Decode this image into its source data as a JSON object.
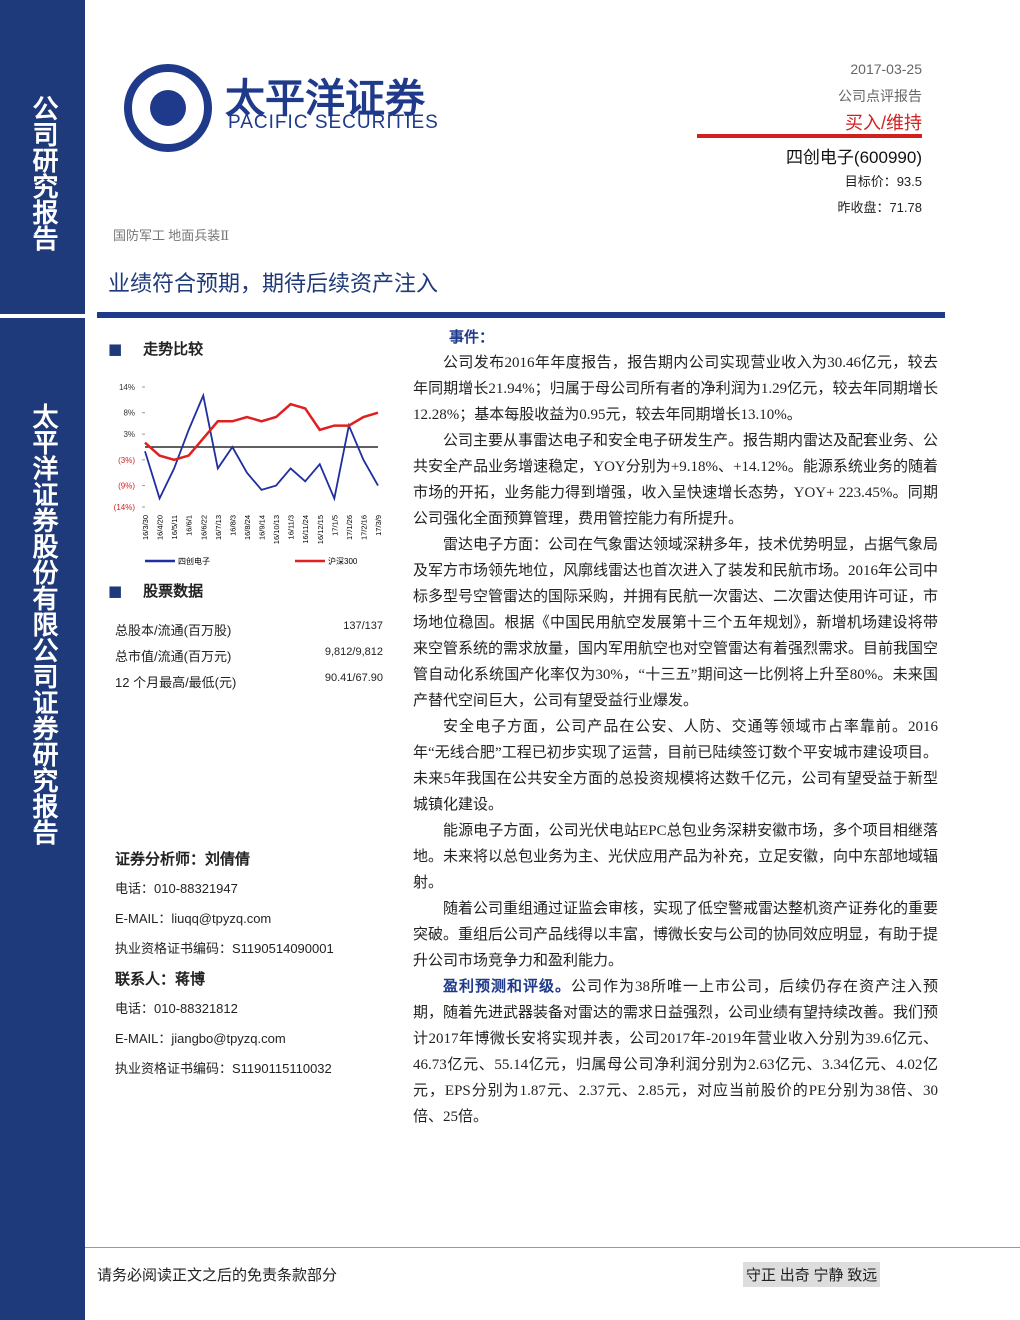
{
  "header": {
    "brand": "太平洋证券",
    "brand_en": "PACIFIC SECURITIES",
    "date": "2017-03-25",
    "report_type": "公司点评报告",
    "rating": "买入/维持",
    "company": "四创电子(600990)",
    "target_price": "目标价：93.5",
    "last_close": "昨收盘：71.78",
    "sector": "国防军工 地面兵装Ⅱ",
    "title": "业绩符合预期，期待后续资产注入"
  },
  "sidebar": {
    "top": "公司研究报告",
    "bottom": "太平洋证券股份有限公司证券研究报告"
  },
  "left": {
    "trend_heading": "走势比较",
    "stock_heading": "股票数据",
    "stock_rows": [
      [
        "总股本/流通(百万股)",
        "137/137"
      ],
      [
        "总市值/流通(百万元)",
        "9,812/9,812"
      ],
      [
        "12 个月最高/最低(元)",
        "90.41/67.90"
      ]
    ],
    "contacts": [
      "证券分析师：刘倩倩",
      "电话：010-88321947",
      "E-MAIL：liuqq@tpyzq.com",
      "执业资格证书编码：S1190514090001",
      "联系人：蒋博",
      "电话：010-88321812",
      "E-MAIL：jiangbo@tpyzq.com",
      "执业资格证书编码：S1190115110032"
    ]
  },
  "chart_data": {
    "type": "line",
    "categories": [
      "16/3/30",
      "16/4/20",
      "16/5/11",
      "16/6/1",
      "16/6/22",
      "16/7/13",
      "16/8/3",
      "16/8/24",
      "16/9/14",
      "16/10/13",
      "16/11/3",
      "16/11/24",
      "16/12/15",
      "17/1/5",
      "17/1/26",
      "17/2/16",
      "17/3/9"
    ],
    "series": [
      {
        "name": "四创电子",
        "color": "#1f2f9f",
        "values": [
          -1,
          -12,
          -5,
          4,
          12,
          -5,
          0,
          -6,
          -10,
          -9,
          -5,
          -8,
          -4,
          -12,
          5,
          -3,
          -9
        ]
      },
      {
        "name": "沪深300",
        "color": "#e02020",
        "values": [
          1,
          -2,
          -3,
          -2,
          2,
          6,
          6,
          7,
          6,
          7,
          10,
          9,
          4,
          5,
          5,
          7,
          8
        ]
      }
    ],
    "ylim": [
      -14,
      14
    ],
    "yticks": [
      {
        "value": 14,
        "label": "14%"
      },
      {
        "value": 8,
        "label": "8%"
      },
      {
        "value": 3,
        "label": "3%"
      },
      {
        "value": -3,
        "label": "(3%)"
      },
      {
        "value": -9,
        "label": "(9%)"
      },
      {
        "value": -14,
        "label": "(14%)"
      }
    ]
  },
  "body": {
    "event_heading": "事件：",
    "paragraphs": [
      "公司发布2016年年度报告，报告期内公司实现营业收入为30.46亿元，较去年同期增长21.94%；归属于母公司所有者的净利润为1.29亿元，较去年同期增长12.28%；基本每股收益为0.95元，较去年同期增长13.10%。",
      "公司主要从事雷达电子和安全电子研发生产。报告期内雷达及配套业务、公共安全产品业务增速稳定，YOY分别为+9.18%、+14.12%。能源系统业务的随着市场的开拓，业务能力得到增强，收入呈快速增长态势，YOY+ 223.45%。同期公司强化全面预算管理，费用管控能力有所提升。",
      "雷达电子方面：公司在气象雷达领域深耕多年，技术优势明显，占据气象局及军方市场领先地位，风廓线雷达也首次进入了装发和民航市场。2016年公司中标多型号空管雷达的国际采购，并拥有民航一次雷达、二次雷达使用许可证，市场地位稳固。根据《中国民用航空发展第十三个五年规划》，新增机场建设将带来空管系统的需求放量，国内军用航空也对空管雷达有着强烈需求。目前我国空管自动化系统国产化率仅为30%，“十三五”期间这一比例将上升至80%。未来国产替代空间巨大，公司有望受益行业爆发。",
      "安全电子方面，公司产品在公安、人防、交通等领域市占率靠前。2016年“无线合肥”工程已初步实现了运营，目前已陆续签订数个平安城市建设项目。未来5年我国在公共安全方面的总投资规模将达数千亿元，公司有望受益于新型城镇化建设。",
      "能源电子方面，公司光伏电站EPC总包业务深耕安徽市场，多个项目相继落地。未来将以总包业务为主、光伏应用产品为补充，立足安徽，向中东部地域辐射。",
      "随着公司重组通过证监会审核，实现了低空警戒雷达整机资产证券化的重要突破。重组后公司产品线得以丰富，博微长安与公司的协同效应明显，有助于提升公司市场竞争力和盈利能力。"
    ],
    "rating_lead": "盈利预测和评级。",
    "rating_text": "公司作为38所唯一上市公司，后续仍存在资产注入预期，随着先进武器装备对雷达的需求日益强烈，公司业绩有望持续改善。我们预计2017年博微长安将实现并表，公司2017年-2019年营业收入分别为39.6亿元、46.73亿元、55.14亿元，归属母公司净利润分别为2.63亿元、3.34亿元、4.02亿元，EPS分别为1.87元、2.37元、2.85元，对应当前股价的PE分别为38倍、30倍、25倍。"
  },
  "footer": {
    "disclaimer": "请务必阅读正文之后的免责条款部分",
    "motto": "守正 出奇 宁静 致远"
  }
}
